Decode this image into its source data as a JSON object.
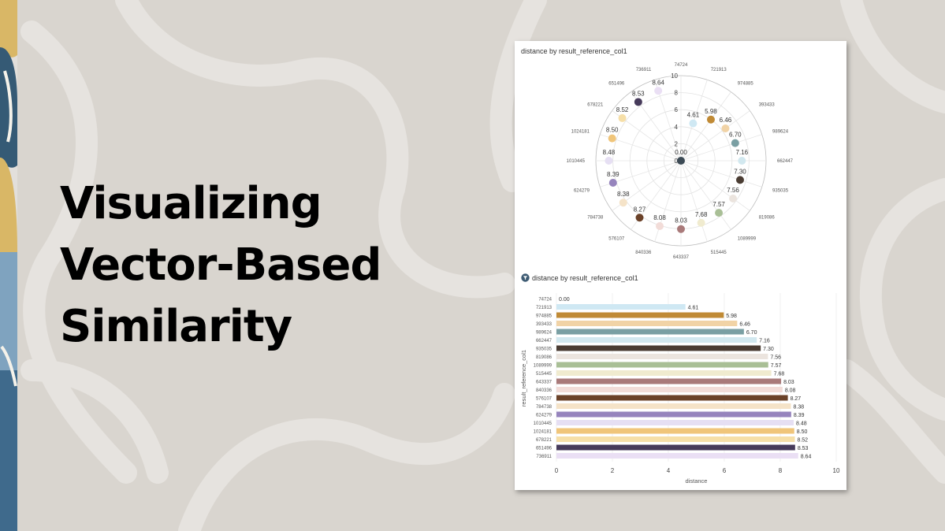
{
  "slide": {
    "title_lines": [
      "Visualizing",
      "Vector-Based",
      "Similarity"
    ]
  },
  "colors": {
    "background": "#d9d5cf",
    "pattern": "#e6e3df",
    "panel": "#ffffff"
  },
  "chart_data": [
    {
      "type": "polar-scatter",
      "title": "distance by result_reference_col1",
      "categories": [
        "74724",
        "721913",
        "974885",
        "393433",
        "989624",
        "662447",
        "935035",
        "819086",
        "1089999",
        "515445",
        "643337",
        "840336",
        "576107",
        "784738",
        "624279",
        "1010445",
        "1024181",
        "678221",
        "651496",
        "736911"
      ],
      "values": [
        0.0,
        4.61,
        5.98,
        6.46,
        6.7,
        7.16,
        7.3,
        7.56,
        7.57,
        7.68,
        8.03,
        8.08,
        8.27,
        8.38,
        8.39,
        8.48,
        8.5,
        8.52,
        8.53,
        8.64
      ],
      "value_labels": [
        "0.00",
        "4.61",
        "5.98",
        "6.46",
        "6.70",
        "7.16",
        "7.30",
        "7.56",
        "7.57",
        "7.68",
        "8.03",
        "8.08",
        "8.27",
        "8.38",
        "8.39",
        "8.48",
        "8.50",
        "8.52",
        "8.53",
        "8.64"
      ],
      "colors": [
        "#3c4a55",
        "#cfe8f3",
        "#c08a35",
        "#f1d3a6",
        "#7a9fa3",
        "#d2e8ef",
        "#4a3c33",
        "#ebe4de",
        "#a9bf96",
        "#f0ebcf",
        "#a97a7a",
        "#f2dcd8",
        "#6b4229",
        "#f5e3c8",
        "#9684bd",
        "#e6dff3",
        "#f0c57a",
        "#f6dfa8",
        "#463a5a",
        "#eadff4"
      ],
      "radial_range": [
        0,
        10
      ],
      "radial_ticks": [
        0,
        2,
        4,
        6,
        8,
        10
      ],
      "radial_tick_labels": [
        "0",
        "2",
        "4",
        "6",
        "8",
        "10"
      ]
    },
    {
      "type": "bar",
      "orientation": "horizontal",
      "title": "distance by result_reference_col1",
      "xlabel": "distance",
      "ylabel": "result_reference_col1",
      "categories": [
        "74724",
        "721913",
        "974885",
        "393433",
        "989624",
        "662447",
        "935035",
        "819086",
        "1089999",
        "515445",
        "643337",
        "840336",
        "576107",
        "784738",
        "624279",
        "1010445",
        "1024181",
        "678221",
        "651496",
        "736911"
      ],
      "values": [
        0.0,
        4.61,
        5.98,
        6.46,
        6.7,
        7.16,
        7.3,
        7.56,
        7.57,
        7.68,
        8.03,
        8.08,
        8.27,
        8.38,
        8.39,
        8.48,
        8.5,
        8.52,
        8.53,
        8.64
      ],
      "value_labels": [
        "0.00",
        "4.61",
        "5.98",
        "6.46",
        "6.70",
        "7.16",
        "7.30",
        "7.56",
        "7.57",
        "7.68",
        "8.03",
        "8.08",
        "8.27",
        "8.38",
        "8.39",
        "8.48",
        "8.50",
        "8.52",
        "8.53",
        "8.64"
      ],
      "colors": [
        "#3c4a55",
        "#cfe8f3",
        "#c08a35",
        "#f1d3a6",
        "#7a9fa3",
        "#d2e8ef",
        "#4a3c33",
        "#ebe4de",
        "#a9bf96",
        "#f0ebcf",
        "#a97a7a",
        "#f2dcd8",
        "#6b4229",
        "#f5e3c8",
        "#9684bd",
        "#e6dff3",
        "#f0c57a",
        "#f6dfa8",
        "#463a5a",
        "#eadff4"
      ],
      "xlim": [
        0,
        10
      ],
      "x_ticks": [
        0,
        2,
        4,
        6,
        8,
        10
      ],
      "x_tick_labels": [
        "0",
        "2",
        "4",
        "6",
        "8",
        "10"
      ],
      "grid": true
    }
  ]
}
